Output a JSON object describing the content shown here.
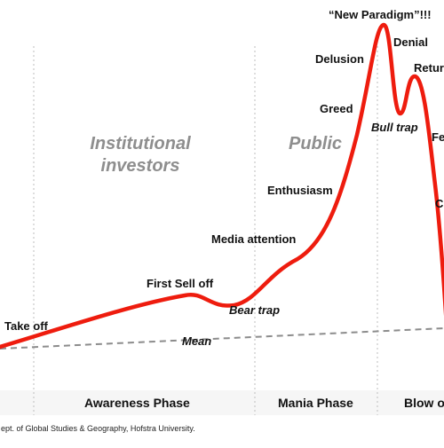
{
  "colors": {
    "curve": "#ee1c0e",
    "mean_line": "#8c8c8c",
    "divider": "#c8c8c8",
    "phase_band": "#f6f6f6",
    "audience_text": "#8e8e8e"
  },
  "audiences": {
    "institutional": {
      "line1": "Institutional",
      "line2": "investors"
    },
    "public": "Public"
  },
  "stage_labels": {
    "take_off": "Take off",
    "first_sell_off": "First Sell off",
    "bear_trap": "Bear trap",
    "media_attention": "Media attention",
    "enthusiasm": "Enthusiasm",
    "greed": "Greed",
    "delusion": "Delusion",
    "new_paradigm": "“New Paradigm”!!!",
    "denial": "Denial",
    "bull_trap": "Bull trap",
    "return": "Retur",
    "fear": "Fe",
    "capitulation": "C"
  },
  "mean_label": "Mean",
  "phases": {
    "awareness": "Awareness Phase",
    "mania": "Mania Phase",
    "blow_off": "Blow o"
  },
  "credit": "ept. of Global Studies & Geography, Hofstra University."
}
